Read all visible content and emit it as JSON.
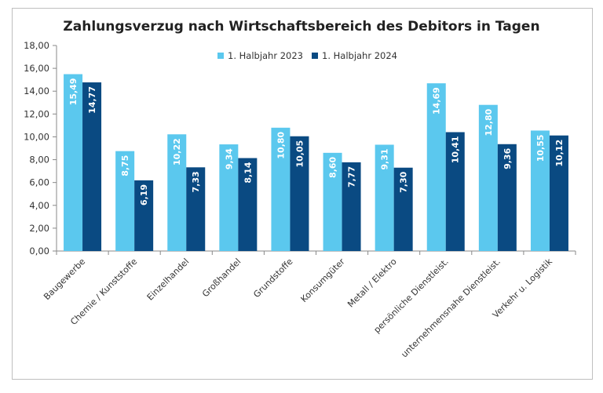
{
  "chart_data": {
    "type": "bar",
    "title": "Zahlungsverzug nach Wirtschaftsbereich des Debitors in Tagen",
    "xlabel": "",
    "ylabel": "",
    "ylim": [
      0,
      18
    ],
    "yticks": [
      "0,00",
      "2,00",
      "4,00",
      "6,00",
      "8,00",
      "10,00",
      "12,00",
      "14,00",
      "16,00",
      "18,00"
    ],
    "grid": false,
    "legend_position": "top-center",
    "categories": [
      "Baugewerbe",
      "Chemie / Kunststoffe",
      "Einzelhandel",
      "Großhandel",
      "Grundstoffe",
      "Konsumgüter",
      "Metall / Elektro",
      "persönliche Dienstleist.",
      "unternehmensnahe Dienstleist.",
      "Verkehr u. Logistik"
    ],
    "series": [
      {
        "name": "1. Halbjahr 2023",
        "color": "#5bc8ee",
        "values": [
          15.49,
          8.75,
          10.22,
          9.34,
          10.8,
          8.6,
          9.31,
          14.69,
          12.8,
          10.55
        ],
        "labels": [
          "15,49",
          "8,75",
          "10,22",
          "9,34",
          "10,80",
          "8,60",
          "9,31",
          "14,69",
          "12,80",
          "10,55"
        ]
      },
      {
        "name": "1. Halbjahr 2024",
        "color": "#0a4a82",
        "values": [
          14.77,
          6.19,
          7.33,
          8.14,
          10.05,
          7.77,
          7.3,
          10.41,
          9.36,
          10.12
        ],
        "labels": [
          "14,77",
          "6,19",
          "7,33",
          "8,14",
          "10,05",
          "7,77",
          "7,30",
          "10,41",
          "9,36",
          "10,12"
        ]
      }
    ]
  }
}
